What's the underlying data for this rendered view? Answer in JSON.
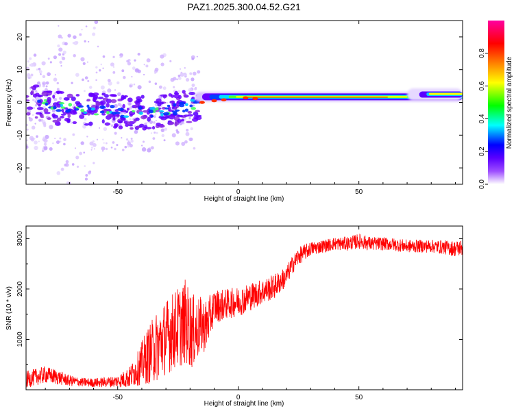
{
  "figure_title": "PAZ1.2025.300.04.52.G21",
  "chart_data": [
    {
      "type": "heatmap",
      "title": "PAZ1.2025.300.04.52.G21",
      "xlabel": "Height of straight line (km)",
      "ylabel": "Frequency (Hz)",
      "xlim": [
        -88,
        93
      ],
      "ylim": [
        -25,
        25
      ],
      "xticks": [
        -50,
        0,
        50
      ],
      "xtick_labels": [
        "-50",
        "0",
        "50"
      ],
      "yticks": [
        -20,
        -10,
        0,
        10,
        20
      ],
      "ytick_labels": [
        "-20",
        "-10",
        "0",
        "10",
        "20"
      ],
      "ridge": [
        {
          "x": -85,
          "y": 0.5
        },
        {
          "x": -75,
          "y": -1.5
        },
        {
          "x": -65,
          "y": -2
        },
        {
          "x": -55,
          "y": -2.5
        },
        {
          "x": -45,
          "y": -3
        },
        {
          "x": -35,
          "y": -3
        },
        {
          "x": -25,
          "y": -2
        },
        {
          "x": -18,
          "y": -0.5
        },
        {
          "x": -10,
          "y": 0.5
        },
        {
          "x": 0,
          "y": 1.5
        },
        {
          "x": 20,
          "y": 1.5
        },
        {
          "x": 50,
          "y": 1.5
        },
        {
          "x": 70,
          "y": 1.8
        },
        {
          "x": 80,
          "y": 2.5
        },
        {
          "x": 93,
          "y": 2.5
        }
      ],
      "colorbar": {
        "label": "Normalized spectral amplitude",
        "range": [
          0,
          1
        ],
        "ticks": [
          0.0,
          0.2,
          0.4,
          0.6,
          0.8
        ],
        "tick_labels": [
          "0.0",
          "0.2",
          "0.4",
          "0.6",
          "0.8"
        ],
        "colors": [
          "#ffffff",
          "#7a00ff",
          "#0000ff",
          "#00ffff",
          "#00ff00",
          "#ffff00",
          "#ff8000",
          "#ff0000",
          "#ff00a0"
        ]
      }
    },
    {
      "type": "line",
      "title": "",
      "xlabel": "Height of straight line (km)",
      "ylabel": "SNR (10 * v/v)",
      "xlim": [
        -88,
        93
      ],
      "ylim": [
        0,
        3250
      ],
      "xticks": [
        -50,
        0,
        50
      ],
      "xtick_labels": [
        "-50",
        "0",
        "50"
      ],
      "yticks": [
        1000,
        2000,
        3000
      ],
      "ytick_labels": [
        "1000",
        "2000",
        "3000"
      ],
      "line_color": "#ff0000",
      "series": [
        {
          "name": "SNR",
          "x": [
            -88,
            -80,
            -75,
            -70,
            -65,
            -60,
            -55,
            -50,
            -45,
            -42,
            -38,
            -34,
            -30,
            -26,
            -22,
            -19,
            -16,
            -13,
            -10,
            -5,
            0,
            5,
            10,
            15,
            20,
            22,
            25,
            30,
            35,
            40,
            45,
            50,
            55,
            60,
            65,
            70,
            75,
            80,
            85,
            90,
            93
          ],
          "values": [
            200,
            300,
            250,
            180,
            150,
            140,
            150,
            170,
            250,
            400,
            650,
            850,
            1050,
            1200,
            1350,
            1150,
            1250,
            1300,
            1650,
            1700,
            1750,
            1850,
            1950,
            2050,
            2250,
            2450,
            2650,
            2800,
            2850,
            2900,
            2900,
            2950,
            2900,
            2900,
            2880,
            2850,
            2850,
            2850,
            2830,
            2800,
            2820
          ],
          "noise_amplitude": [
            170,
            170,
            150,
            110,
            90,
            90,
            100,
            120,
            220,
            320,
            550,
            700,
            750,
            800,
            850,
            750,
            600,
            500,
            350,
            300,
            300,
            280,
            250,
            250,
            200,
            180,
            180,
            140,
            130,
            130,
            140,
            150,
            140,
            130,
            130,
            130,
            130,
            130,
            140,
            160,
            170
          ]
        }
      ]
    }
  ]
}
